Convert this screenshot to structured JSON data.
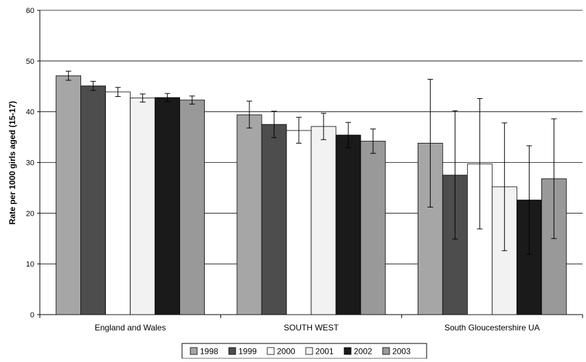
{
  "chart_data": {
    "type": "bar",
    "title": "",
    "xlabel": "",
    "ylabel": "Rate per 1000 girls aged (15-17)",
    "ylim": [
      0,
      60
    ],
    "yticks": [
      0,
      10,
      20,
      30,
      40,
      50,
      60
    ],
    "grid": true,
    "legend_position": "bottom",
    "categories": [
      "England and Wales",
      "SOUTH WEST",
      "South Gloucestershire UA"
    ],
    "series": [
      {
        "name": "1998",
        "color": "#a6a6a6",
        "values": [
          47.1,
          39.4,
          33.8
        ],
        "error_low": [
          46.2,
          36.8,
          21.2
        ],
        "error_high": [
          48.0,
          42.1,
          46.4
        ]
      },
      {
        "name": "1999",
        "color": "#4d4d4d",
        "values": [
          45.1,
          37.5,
          27.5
        ],
        "error_low": [
          44.2,
          34.9,
          14.9
        ],
        "error_high": [
          46.0,
          40.1,
          40.2
        ]
      },
      {
        "name": "2000",
        "color": "#ffffff",
        "values": [
          43.9,
          36.3,
          29.7
        ],
        "error_low": [
          43.0,
          33.8,
          16.9
        ],
        "error_high": [
          44.8,
          38.9,
          42.6
        ]
      },
      {
        "name": "2001",
        "color": "#f2f2f2",
        "values": [
          42.7,
          37.1,
          25.2
        ],
        "error_low": [
          41.9,
          34.5,
          12.6
        ],
        "error_high": [
          43.5,
          39.7,
          37.8
        ]
      },
      {
        "name": "2002",
        "color": "#1a1a1a",
        "values": [
          42.8,
          35.4,
          22.6
        ],
        "error_low": [
          42.0,
          32.9,
          11.9
        ],
        "error_high": [
          43.6,
          37.9,
          33.3
        ]
      },
      {
        "name": "2003",
        "color": "#999999",
        "values": [
          42.3,
          34.2,
          26.8
        ],
        "error_low": [
          41.5,
          31.8,
          15.0
        ],
        "error_high": [
          43.1,
          36.6,
          38.6
        ]
      }
    ]
  }
}
